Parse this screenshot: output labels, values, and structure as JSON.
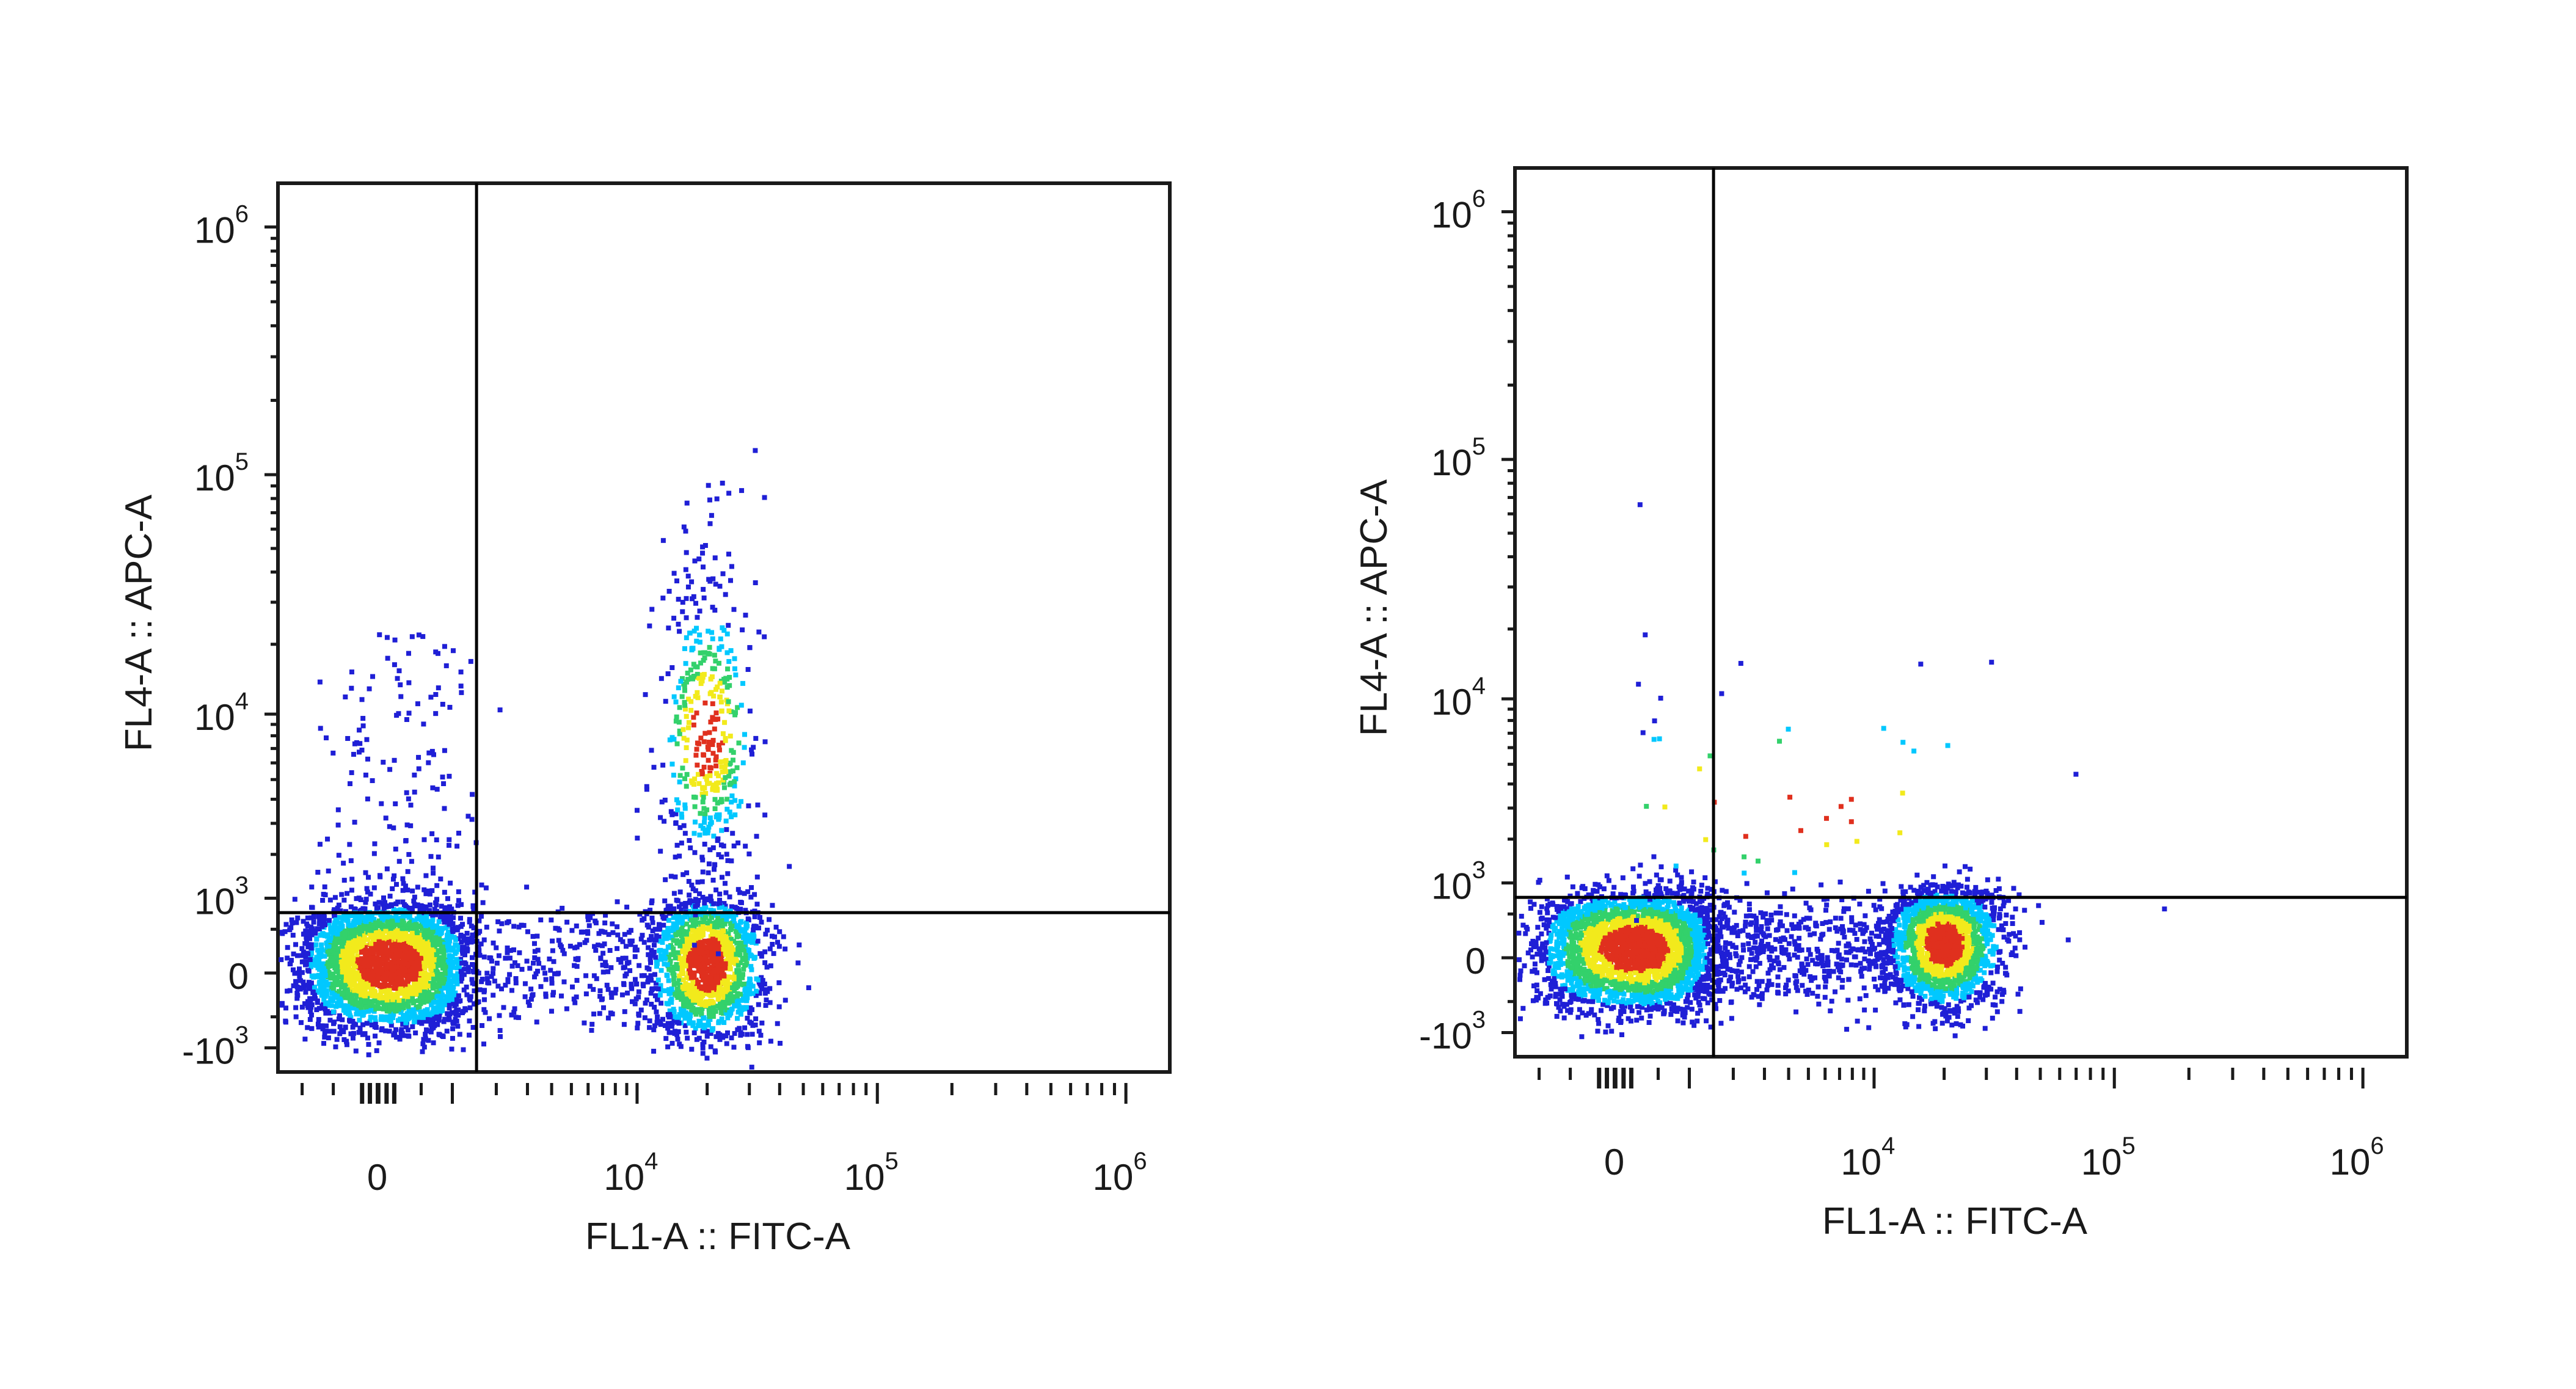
{
  "colors": {
    "density_low": "#1f1fd6",
    "density_mid_low": "#00c8ff",
    "density_mid": "#33d16b",
    "density_mid_high": "#f2ea1c",
    "density_high": "#e0301e",
    "gate": "#000000",
    "axis": "#1a1a1a"
  },
  "chart_data": [
    {
      "type": "scatter",
      "title": "",
      "xlabel": "FL1-A :: FITC-A",
      "ylabel": "FL4-A :: APC-A",
      "x_scale": "biexponential",
      "y_scale": "biexponential",
      "xlim": [
        -1500,
        1500000
      ],
      "ylim": [
        -1500,
        1500000
      ],
      "x_ticks": [
        {
          "value": 0,
          "base": "0",
          "exp": ""
        },
        {
          "value": 10000,
          "base": "10",
          "exp": "4"
        },
        {
          "value": 100000,
          "base": "10",
          "exp": "5"
        },
        {
          "value": 1000000,
          "base": "10",
          "exp": "6"
        }
      ],
      "y_ticks": [
        {
          "value": -1000,
          "base": "-10",
          "exp": "3"
        },
        {
          "value": 0,
          "base": "0",
          "exp": ""
        },
        {
          "value": 1000,
          "base": "10",
          "exp": "3"
        },
        {
          "value": 10000,
          "base": "10",
          "exp": "4"
        },
        {
          "value": 100000,
          "base": "10",
          "exp": "5"
        },
        {
          "value": 1000000,
          "base": "10",
          "exp": "6"
        }
      ],
      "quadrant_gate": {
        "x": 1500,
        "y": 750
      },
      "populations": [
        {
          "x_center": 150,
          "y_center": 100,
          "x_spread": 1000,
          "y_spread": 700,
          "weight": 0.55,
          "shape": "gaussian"
        },
        {
          "x_center": 20000,
          "y_center": 100,
          "x_spread": 0.12,
          "y_spread": 800,
          "weight": 0.28,
          "shape": "log-x"
        },
        {
          "x_center": 20000,
          "y_center": 8000,
          "x_spread": 0.1,
          "y_spread": 0.9,
          "weight": 0.09,
          "shape": "log-both"
        },
        {
          "x_from": 1500,
          "x_to": 12000,
          "y_center": 100,
          "y_spread": 700,
          "weight": 0.05,
          "shape": "bridge"
        },
        {
          "x_center": 300,
          "y_center": 3000,
          "x_spread": 1100,
          "y_spread": 1.0,
          "weight": 0.03,
          "shape": "tail"
        }
      ]
    },
    {
      "type": "scatter",
      "title": "",
      "xlabel": "FL1-A :: FITC-A",
      "ylabel": "FL4-A :: APC-A",
      "x_scale": "biexponential",
      "y_scale": "biexponential",
      "xlim": [
        -1500,
        1500000
      ],
      "ylim": [
        -1500,
        1500000
      ],
      "x_ticks": [
        {
          "value": 0,
          "base": "0",
          "exp": ""
        },
        {
          "value": 10000,
          "base": "10",
          "exp": "4"
        },
        {
          "value": 100000,
          "base": "10",
          "exp": "5"
        },
        {
          "value": 1000000,
          "base": "10",
          "exp": "6"
        }
      ],
      "y_ticks": [
        {
          "value": -1000,
          "base": "-10",
          "exp": "3"
        },
        {
          "value": 0,
          "base": "0",
          "exp": ""
        },
        {
          "value": 1000,
          "base": "10",
          "exp": "3"
        },
        {
          "value": 10000,
          "base": "10",
          "exp": "4"
        },
        {
          "value": 100000,
          "base": "10",
          "exp": "5"
        },
        {
          "value": 1000000,
          "base": "10",
          "exp": "6"
        }
      ],
      "quadrant_gate": {
        "x": 1500,
        "y": 750
      },
      "populations": [
        {
          "x_center": 250,
          "y_center": 100,
          "x_spread": 1100,
          "y_spread": 650,
          "weight": 0.55,
          "shape": "gaussian"
        },
        {
          "x_center": 20000,
          "y_center": 150,
          "x_spread": 0.12,
          "y_spread": 650,
          "weight": 0.35,
          "shape": "log-x"
        },
        {
          "x_from": 1500,
          "x_to": 12000,
          "y_center": 100,
          "y_spread": 600,
          "weight": 0.09,
          "shape": "bridge"
        },
        {
          "x_center": 3000,
          "y_center": 3000,
          "x_spread": 0.8,
          "y_spread": 0.8,
          "weight": 0.01,
          "shape": "log-both"
        }
      ]
    }
  ]
}
